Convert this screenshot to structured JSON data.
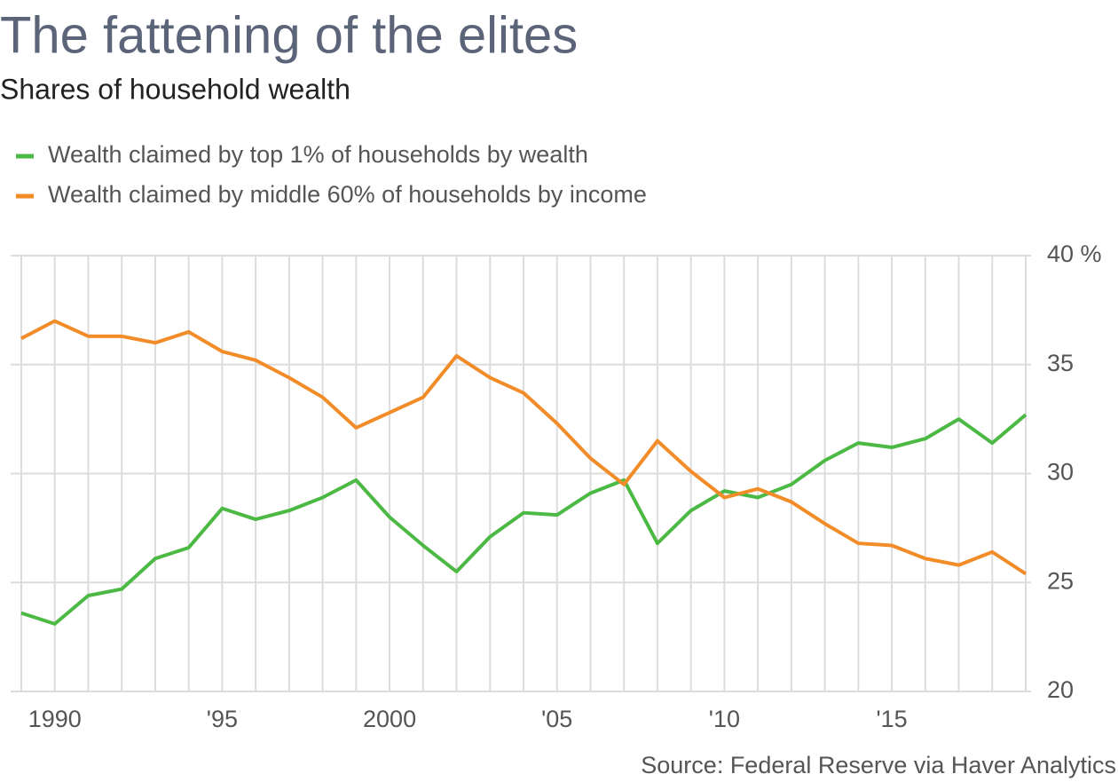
{
  "chart_data": {
    "type": "line",
    "title": "The fattening of the elites",
    "subtitle": "Shares of household wealth",
    "source": "Source: Federal Reserve via Haver Analytics",
    "x": [
      1989,
      1990,
      1991,
      1992,
      1993,
      1994,
      1995,
      1996,
      1997,
      1998,
      1999,
      2000,
      2001,
      2002,
      2003,
      2004,
      2005,
      2006,
      2007,
      2008,
      2009,
      2010,
      2011,
      2012,
      2013,
      2014,
      2015,
      2016,
      2017,
      2018,
      2019
    ],
    "series": [
      {
        "name": "Wealth claimed by top 1% of households by wealth",
        "color": "#4cb944",
        "values": [
          23.6,
          23.1,
          24.4,
          24.7,
          26.1,
          26.6,
          28.4,
          27.9,
          28.3,
          28.9,
          29.7,
          28.0,
          26.7,
          25.5,
          27.1,
          28.2,
          28.1,
          29.1,
          29.7,
          26.8,
          28.3,
          29.2,
          28.9,
          29.5,
          30.6,
          31.4,
          31.2,
          31.6,
          32.5,
          31.4,
          32.7
        ]
      },
      {
        "name": "Wealth claimed by middle 60% of households by income",
        "color": "#f28c28",
        "values": [
          36.2,
          37.0,
          36.3,
          36.3,
          36.0,
          36.5,
          35.6,
          35.2,
          34.4,
          33.5,
          32.1,
          32.8,
          33.5,
          35.4,
          34.4,
          33.7,
          32.3,
          30.7,
          29.5,
          31.5,
          30.1,
          28.9,
          29.3,
          28.7,
          27.7,
          26.8,
          26.7,
          26.1,
          25.8,
          26.4,
          25.4
        ]
      }
    ],
    "xlim": [
      1989,
      2019
    ],
    "xticks": [
      1990,
      {
        "value": 1995,
        "label": "'95"
      },
      2000,
      {
        "value": 2005,
        "label": "'05"
      },
      {
        "value": 2010,
        "label": "'10"
      },
      {
        "value": 2015,
        "label": "'15"
      }
    ],
    "ylim": [
      20,
      40
    ],
    "yticks": [
      {
        "value": 40,
        "label": "40 %"
      },
      35,
      30,
      25,
      20
    ],
    "grid": true
  }
}
